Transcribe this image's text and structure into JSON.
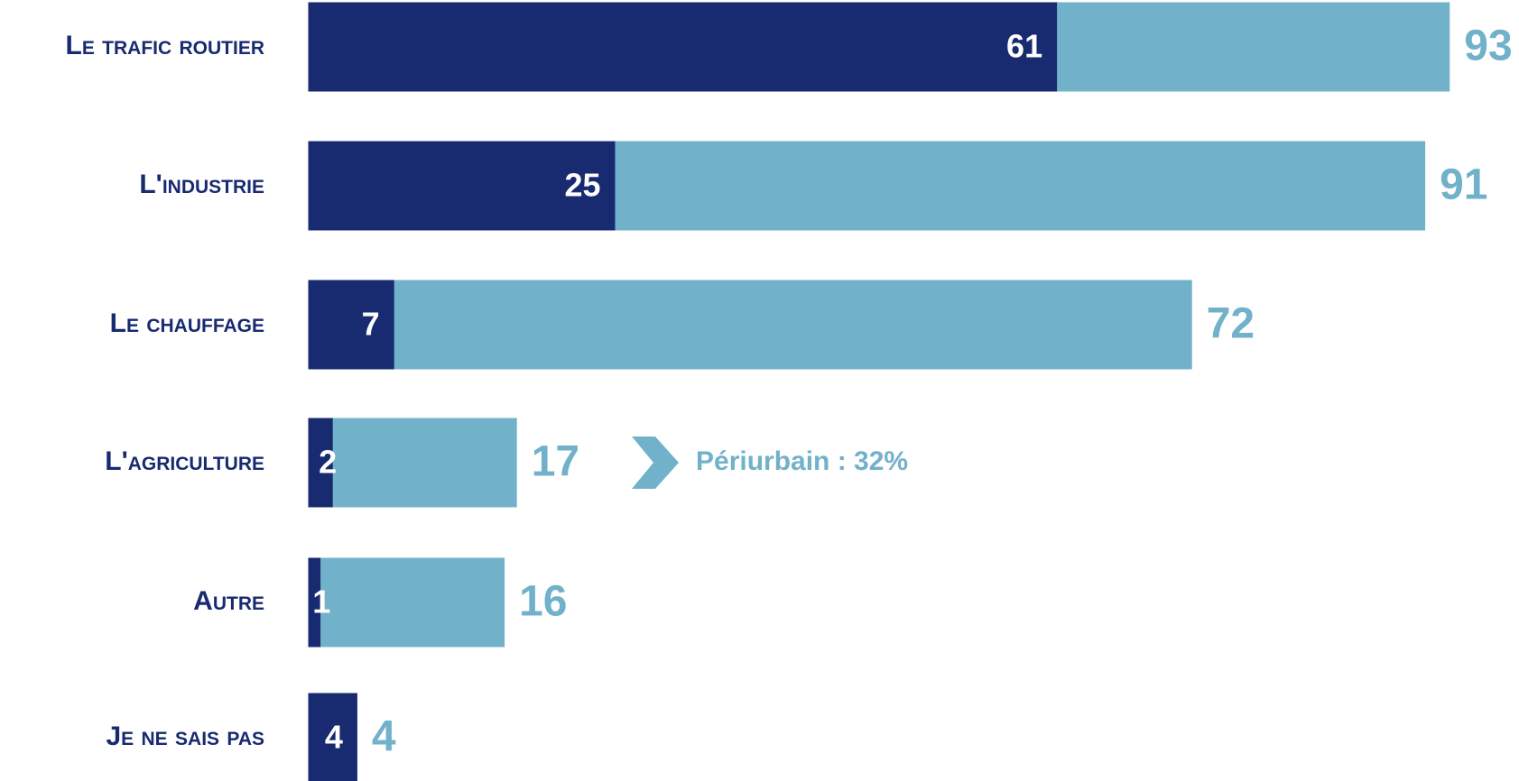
{
  "chart_data": {
    "type": "bar",
    "orientation": "horizontal",
    "categories": [
      "Le trafic routier",
      "L'industrie",
      "Le chauffage",
      "L'agriculture",
      "Autre",
      "Je ne sais pas"
    ],
    "series": [
      {
        "color": "#72b1ca",
        "values": [
          93,
          91,
          72,
          17,
          16,
          4
        ]
      },
      {
        "color": "#182a70",
        "values": [
          61,
          25,
          7,
          2,
          1,
          4
        ]
      }
    ],
    "xlim": [
      0,
      100
    ],
    "annotations": [
      {
        "category": 3,
        "text": "Périurbain : 32%",
        "color": "#72b1ca"
      }
    ]
  }
}
